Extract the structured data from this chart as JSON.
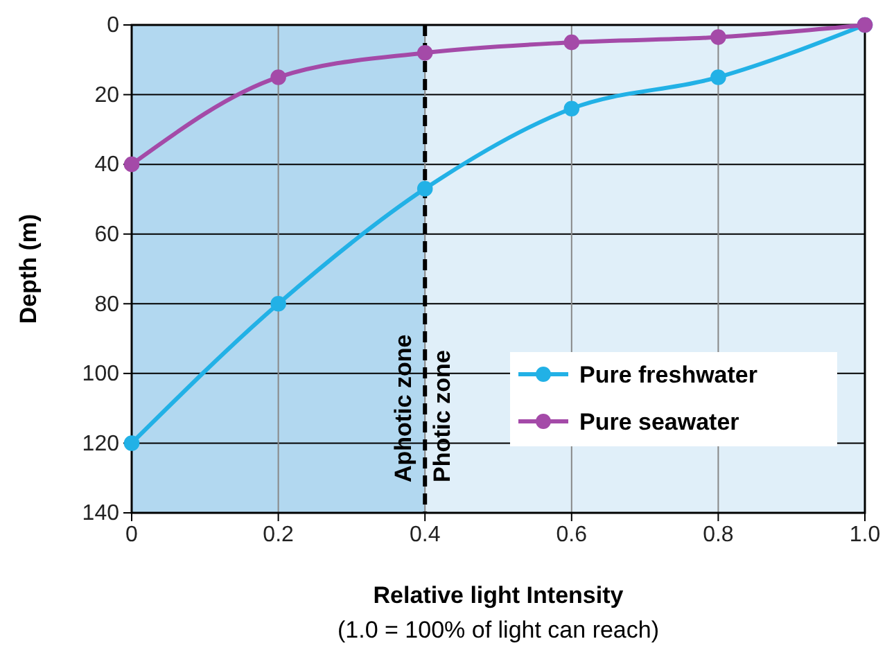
{
  "chart_data": {
    "type": "line",
    "xlabel": "Relative light Intensity",
    "ylabel": "Depth (m)",
    "annotations": [
      "(1.0 = 100% of light can reach)"
    ],
    "x": [
      0,
      0.2,
      0.4,
      0.6,
      0.8,
      1
    ],
    "series": [
      {
        "name": "Pure freshwater",
        "color": "#22b1e6",
        "values": [
          120,
          80,
          47,
          24,
          15,
          0
        ]
      },
      {
        "name": "Pure seawater",
        "color": "#a44aa8",
        "values": [
          40,
          15,
          8,
          5,
          3.5,
          0
        ]
      }
    ],
    "xlim": [
      0,
      1
    ],
    "xticks": [
      0,
      0.2,
      0.4,
      0.6,
      0.8,
      {
        "value": 1,
        "label": "1.0"
      }
    ],
    "ylim": [
      140,
      0
    ],
    "yticks": [
      0,
      20,
      40,
      60,
      80,
      100,
      120,
      140
    ],
    "bands": [
      {
        "axis": "x",
        "from": 0,
        "to": 0.4,
        "label": "Aphotic zone",
        "color": "#b2d8f0"
      },
      {
        "axis": "x",
        "from": 0.4,
        "to": 1,
        "label": "Photic zone",
        "color": "#e0eff9"
      }
    ],
    "ref_lines": [
      {
        "axis": "x",
        "value": 0.4,
        "label": null,
        "color": "#000000",
        "line_style": "dashed"
      }
    ],
    "grid": true,
    "legend": "bottom right",
    "marker": "circle",
    "line_style": "solid"
  }
}
